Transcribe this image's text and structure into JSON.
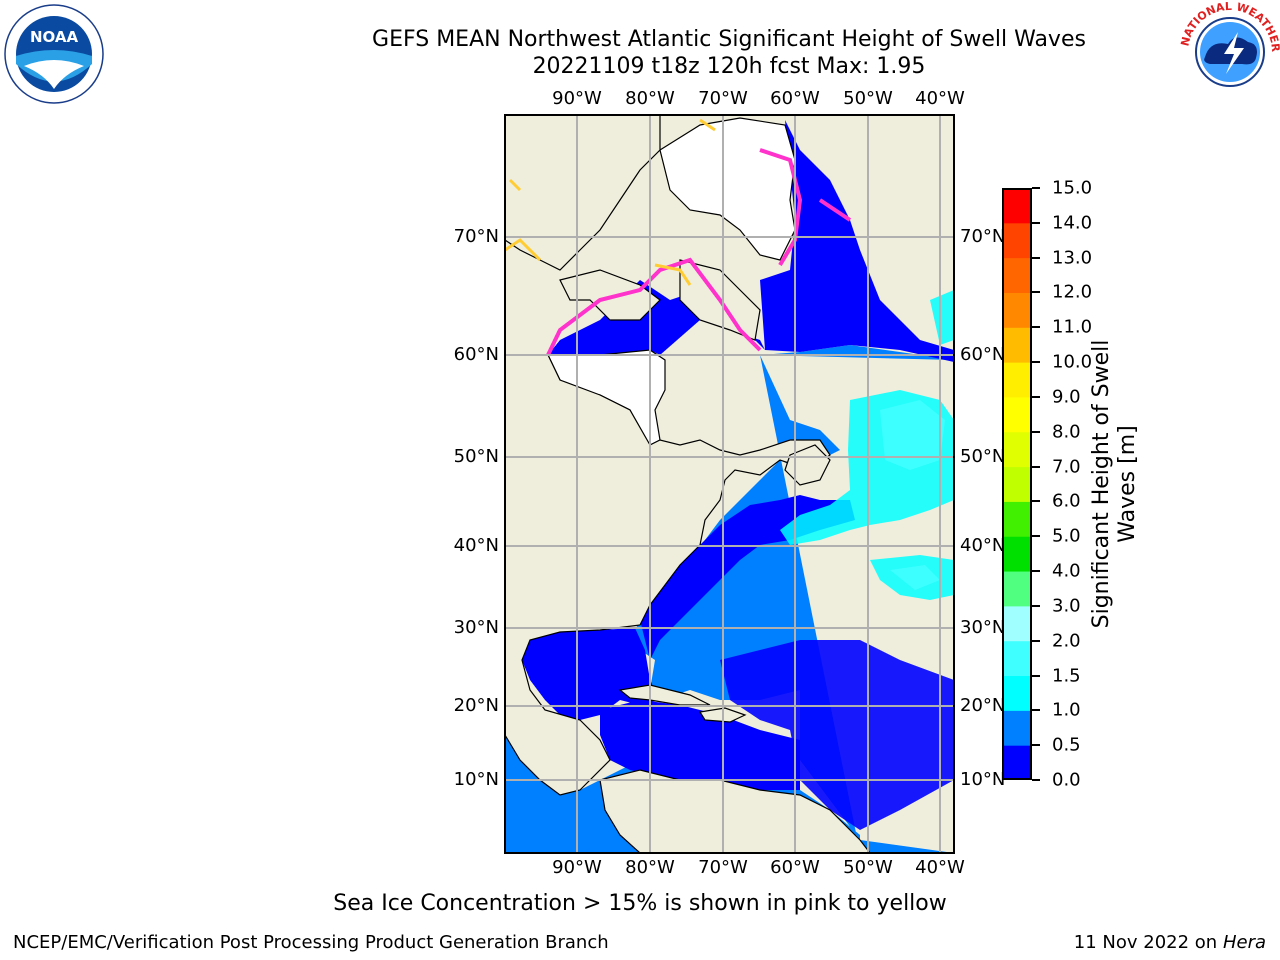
{
  "header": {
    "title_line1": "GEFS MEAN Northwest Atlantic Significant Height of Swell Waves",
    "title_line2": "20221109 t18z 120h fcst   Max: 1.95"
  },
  "logos": {
    "left": {
      "name": "noaa-logo",
      "text": "NOAA"
    },
    "right": {
      "name": "nws-logo",
      "text": "NATIONAL WEATHER SERVICE"
    }
  },
  "map": {
    "longitudes": [
      "90°W",
      "80°W",
      "70°W",
      "60°W",
      "50°W",
      "40°W"
    ],
    "latitudes": [
      "70°N",
      "60°N",
      "50°N",
      "40°N",
      "30°N",
      "20°N",
      "10°N"
    ],
    "colors": {
      "land": "#efeedd",
      "grid": "#b0b0b0",
      "ice_low": "#ff33cc",
      "ice_high": "#ffcc33"
    }
  },
  "colorbar": {
    "label_line1": "Significant Height of Swell",
    "label_line2": "Waves [m]",
    "ticks": [
      "15.0",
      "14.0",
      "13.0",
      "12.0",
      "11.0",
      "10.0",
      "9.0",
      "8.0",
      "7.0",
      "6.0",
      "5.0",
      "4.0",
      "3.0",
      "2.0",
      "1.5",
      "1.0",
      "0.5",
      "0.0"
    ],
    "colors": [
      "#0000ff",
      "#0080ff",
      "#00ffff",
      "#40ffff",
      "#a0ffff",
      "#50ff80",
      "#00e000",
      "#40f000",
      "#c0ff00",
      "#e0ff00",
      "#ffff00",
      "#ffee00",
      "#ffbb00",
      "#ff8800",
      "#ff6600",
      "#ff4400",
      "#ff0000"
    ]
  },
  "footer": {
    "note": "Sea Ice Concentration > 15% is shown in pink to yellow",
    "left": "NCEP/EMC/Verification Post Processing Product Generation Branch",
    "right_date": "11 Nov 2022 on",
    "right_host": "Hera"
  }
}
